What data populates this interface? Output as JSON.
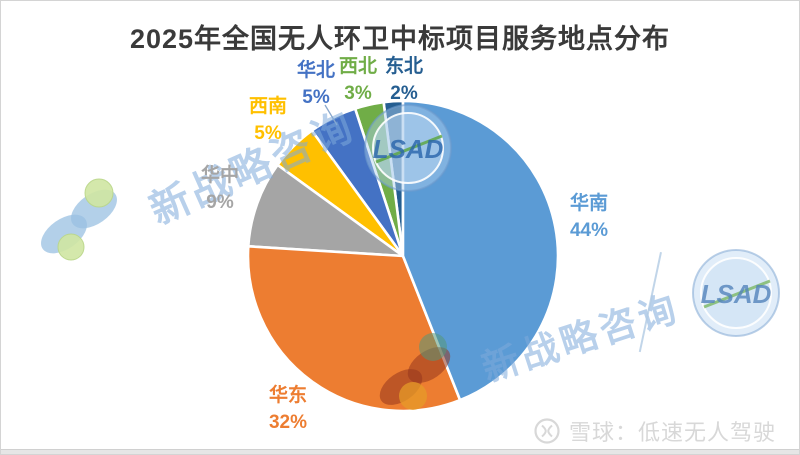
{
  "page": {
    "title": "2025年全国无人环卫中标项目服务地点分布"
  },
  "chart_data": {
    "type": "pie",
    "title": "2025年全国无人环卫中标项目服务地点分布",
    "unit": "percent",
    "start_angle_deg": 0,
    "direction": "clockwise",
    "legend": "none",
    "slices": [
      {
        "label": "华南",
        "value": 44,
        "pct_label": "44%",
        "color": "#5B9BD5"
      },
      {
        "label": "华东",
        "value": 32,
        "pct_label": "32%",
        "color": "#ED7D31"
      },
      {
        "label": "华中",
        "value": 9,
        "pct_label": "9%",
        "color": "#A5A5A5"
      },
      {
        "label": "西南",
        "value": 5,
        "pct_label": "5%",
        "color": "#FFC000"
      },
      {
        "label": "华北",
        "value": 5,
        "pct_label": "5%",
        "color": "#4472C4"
      },
      {
        "label": "西北",
        "value": 3,
        "pct_label": "3%",
        "color": "#70AD47"
      },
      {
        "label": "东北",
        "value": 2,
        "pct_label": "2%",
        "color": "#255E91"
      }
    ]
  },
  "watermarks": {
    "brand_text": "新战略咨询",
    "stamp_text": "LSAD",
    "footer_credit": "雪球：低速无人驾驶"
  }
}
